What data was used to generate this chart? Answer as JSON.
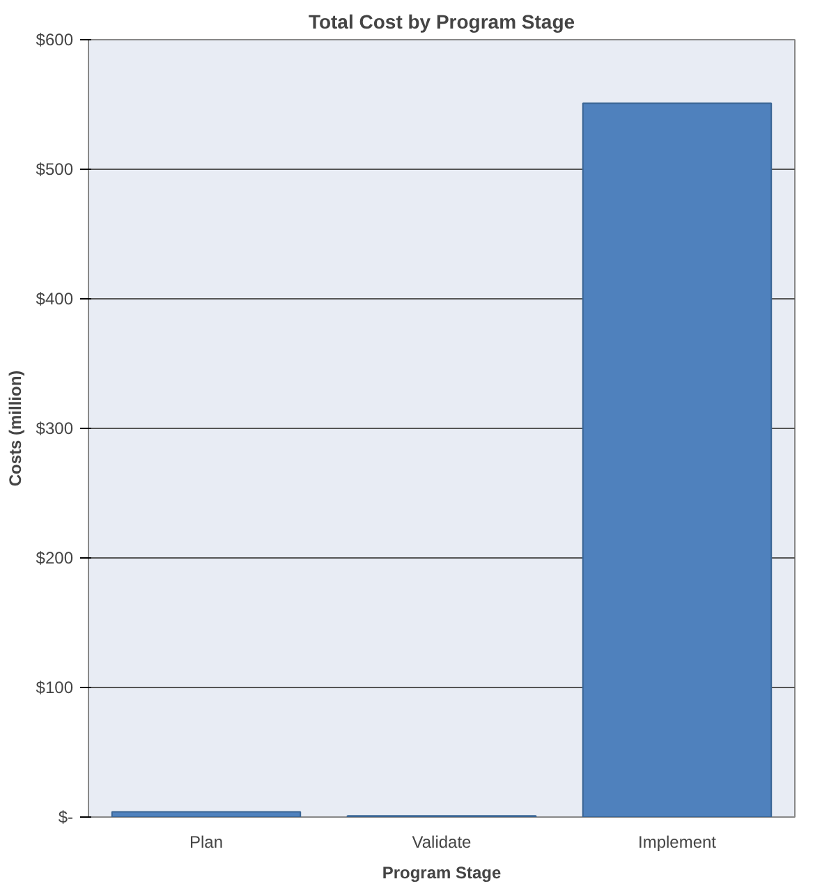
{
  "chart_data": {
    "type": "bar",
    "title": "Total Cost by Program Stage",
    "xlabel": "Program Stage",
    "ylabel": "Costs (million)",
    "categories": [
      "Plan",
      "Validate",
      "Implement"
    ],
    "series": [
      {
        "color": "#4f81bd",
        "values": [
          4,
          1,
          551
        ]
      }
    ],
    "ylim": [
      0,
      600
    ],
    "yticks": [
      {
        "value": 0,
        "label": "$-"
      },
      {
        "value": 100,
        "label": "$100"
      },
      {
        "value": 200,
        "label": "$200"
      },
      {
        "value": 300,
        "label": "$300"
      },
      {
        "value": 400,
        "label": "$400"
      },
      {
        "value": 500,
        "label": "$500"
      },
      {
        "value": 600,
        "label": "$600"
      }
    ],
    "grid": "y"
  }
}
